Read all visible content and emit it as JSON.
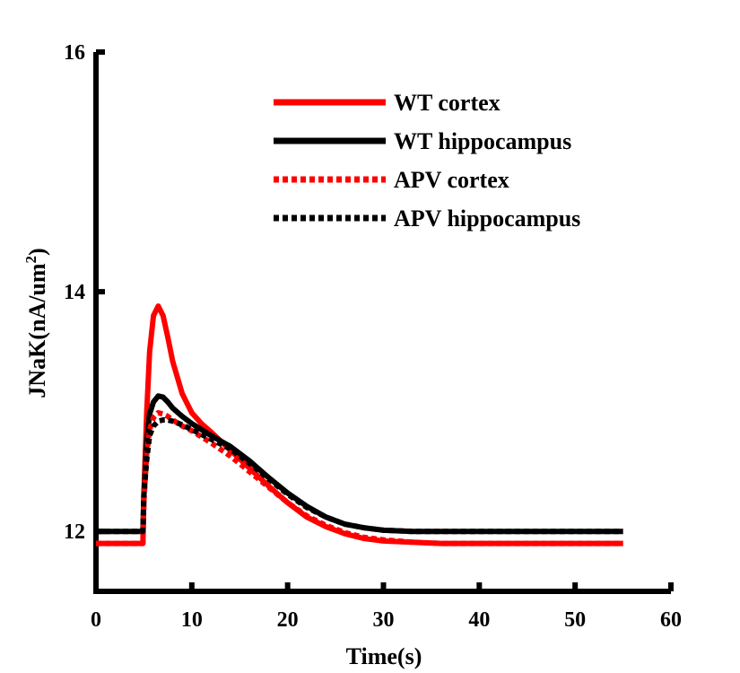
{
  "chart_data": {
    "type": "line",
    "xlabel": "Time(s)",
    "ylabel_main": "JNaK(nA/um",
    "ylabel_sup": "2",
    "ylabel_close": ")",
    "xlim": [
      0,
      60
    ],
    "ylim": [
      11.5,
      16
    ],
    "xticks": [
      0,
      10,
      20,
      30,
      40,
      50,
      60
    ],
    "yticks": [
      12,
      14,
      16
    ],
    "grid": false,
    "legend_position": "top-right",
    "series": [
      {
        "name": "WT cortex",
        "color": "#ff0000",
        "dash": "solid",
        "x": [
          0,
          4.9,
          5.0,
          5.3,
          5.6,
          6.0,
          6.5,
          7.0,
          7.5,
          8.0,
          9.0,
          10.0,
          11.0,
          12.0,
          14.0,
          16.0,
          18.0,
          20.0,
          22.0,
          24.0,
          26.0,
          28.0,
          30.0,
          33.0,
          36.0,
          40.0,
          45.0,
          50.0,
          55.0
        ],
        "y": [
          11.9,
          11.9,
          12.3,
          13.0,
          13.5,
          13.8,
          13.88,
          13.8,
          13.62,
          13.42,
          13.15,
          12.99,
          12.9,
          12.83,
          12.68,
          12.53,
          12.38,
          12.24,
          12.12,
          12.04,
          11.98,
          11.94,
          11.92,
          11.91,
          11.9,
          11.9,
          11.9,
          11.9,
          11.9
        ]
      },
      {
        "name": "WT hippocampus",
        "color": "#000000",
        "dash": "solid",
        "x": [
          0,
          4.9,
          5.0,
          5.3,
          5.6,
          6.0,
          6.5,
          7.0,
          7.5,
          8.0,
          9.0,
          10.0,
          11.0,
          12.0,
          14.0,
          16.0,
          18.0,
          20.0,
          22.0,
          24.0,
          26.0,
          28.0,
          30.0,
          33.0,
          36.0,
          40.0,
          45.0,
          50.0,
          55.0
        ],
        "y": [
          12.0,
          12.0,
          12.3,
          12.75,
          12.98,
          13.08,
          13.13,
          13.12,
          13.08,
          13.03,
          12.96,
          12.9,
          12.85,
          12.8,
          12.71,
          12.59,
          12.45,
          12.32,
          12.21,
          12.12,
          12.06,
          12.03,
          12.01,
          12.0,
          12.0,
          12.0,
          12.0,
          12.0,
          12.0
        ]
      },
      {
        "name": "APV cortex",
        "color": "#ff0000",
        "dash": "dotted",
        "x": [
          0,
          4.9,
          5.0,
          5.3,
          5.6,
          6.0,
          6.5,
          7.0,
          7.5,
          8.0,
          9.0,
          10.0,
          11.0,
          12.0,
          14.0,
          16.0,
          18.0,
          20.0,
          22.0,
          24.0,
          26.0,
          28.0,
          30.0,
          33.0,
          36.0,
          40.0,
          45.0,
          50.0,
          55.0
        ],
        "y": [
          11.9,
          11.9,
          12.25,
          12.65,
          12.85,
          12.95,
          12.99,
          12.98,
          12.96,
          12.93,
          12.88,
          12.84,
          12.79,
          12.74,
          12.63,
          12.5,
          12.37,
          12.24,
          12.13,
          12.05,
          11.99,
          11.95,
          11.93,
          11.91,
          11.9,
          11.9,
          11.9,
          11.9,
          11.9
        ]
      },
      {
        "name": "APV hippocampus",
        "color": "#000000",
        "dash": "dotted",
        "x": [
          0,
          4.9,
          5.0,
          5.3,
          5.6,
          6.0,
          6.5,
          7.0,
          7.5,
          8.0,
          9.0,
          10.0,
          11.0,
          12.0,
          14.0,
          16.0,
          18.0,
          20.0,
          22.0,
          24.0,
          26.0,
          28.0,
          30.0,
          33.0,
          36.0,
          40.0,
          45.0,
          50.0,
          55.0
        ],
        "y": [
          12.0,
          12.0,
          12.3,
          12.6,
          12.8,
          12.88,
          12.92,
          12.93,
          12.93,
          12.92,
          12.89,
          12.85,
          12.81,
          12.77,
          12.69,
          12.57,
          12.44,
          12.31,
          12.2,
          12.12,
          12.06,
          12.03,
          12.01,
          12.0,
          12.0,
          12.0,
          12.0,
          12.0,
          12.0
        ]
      }
    ]
  }
}
